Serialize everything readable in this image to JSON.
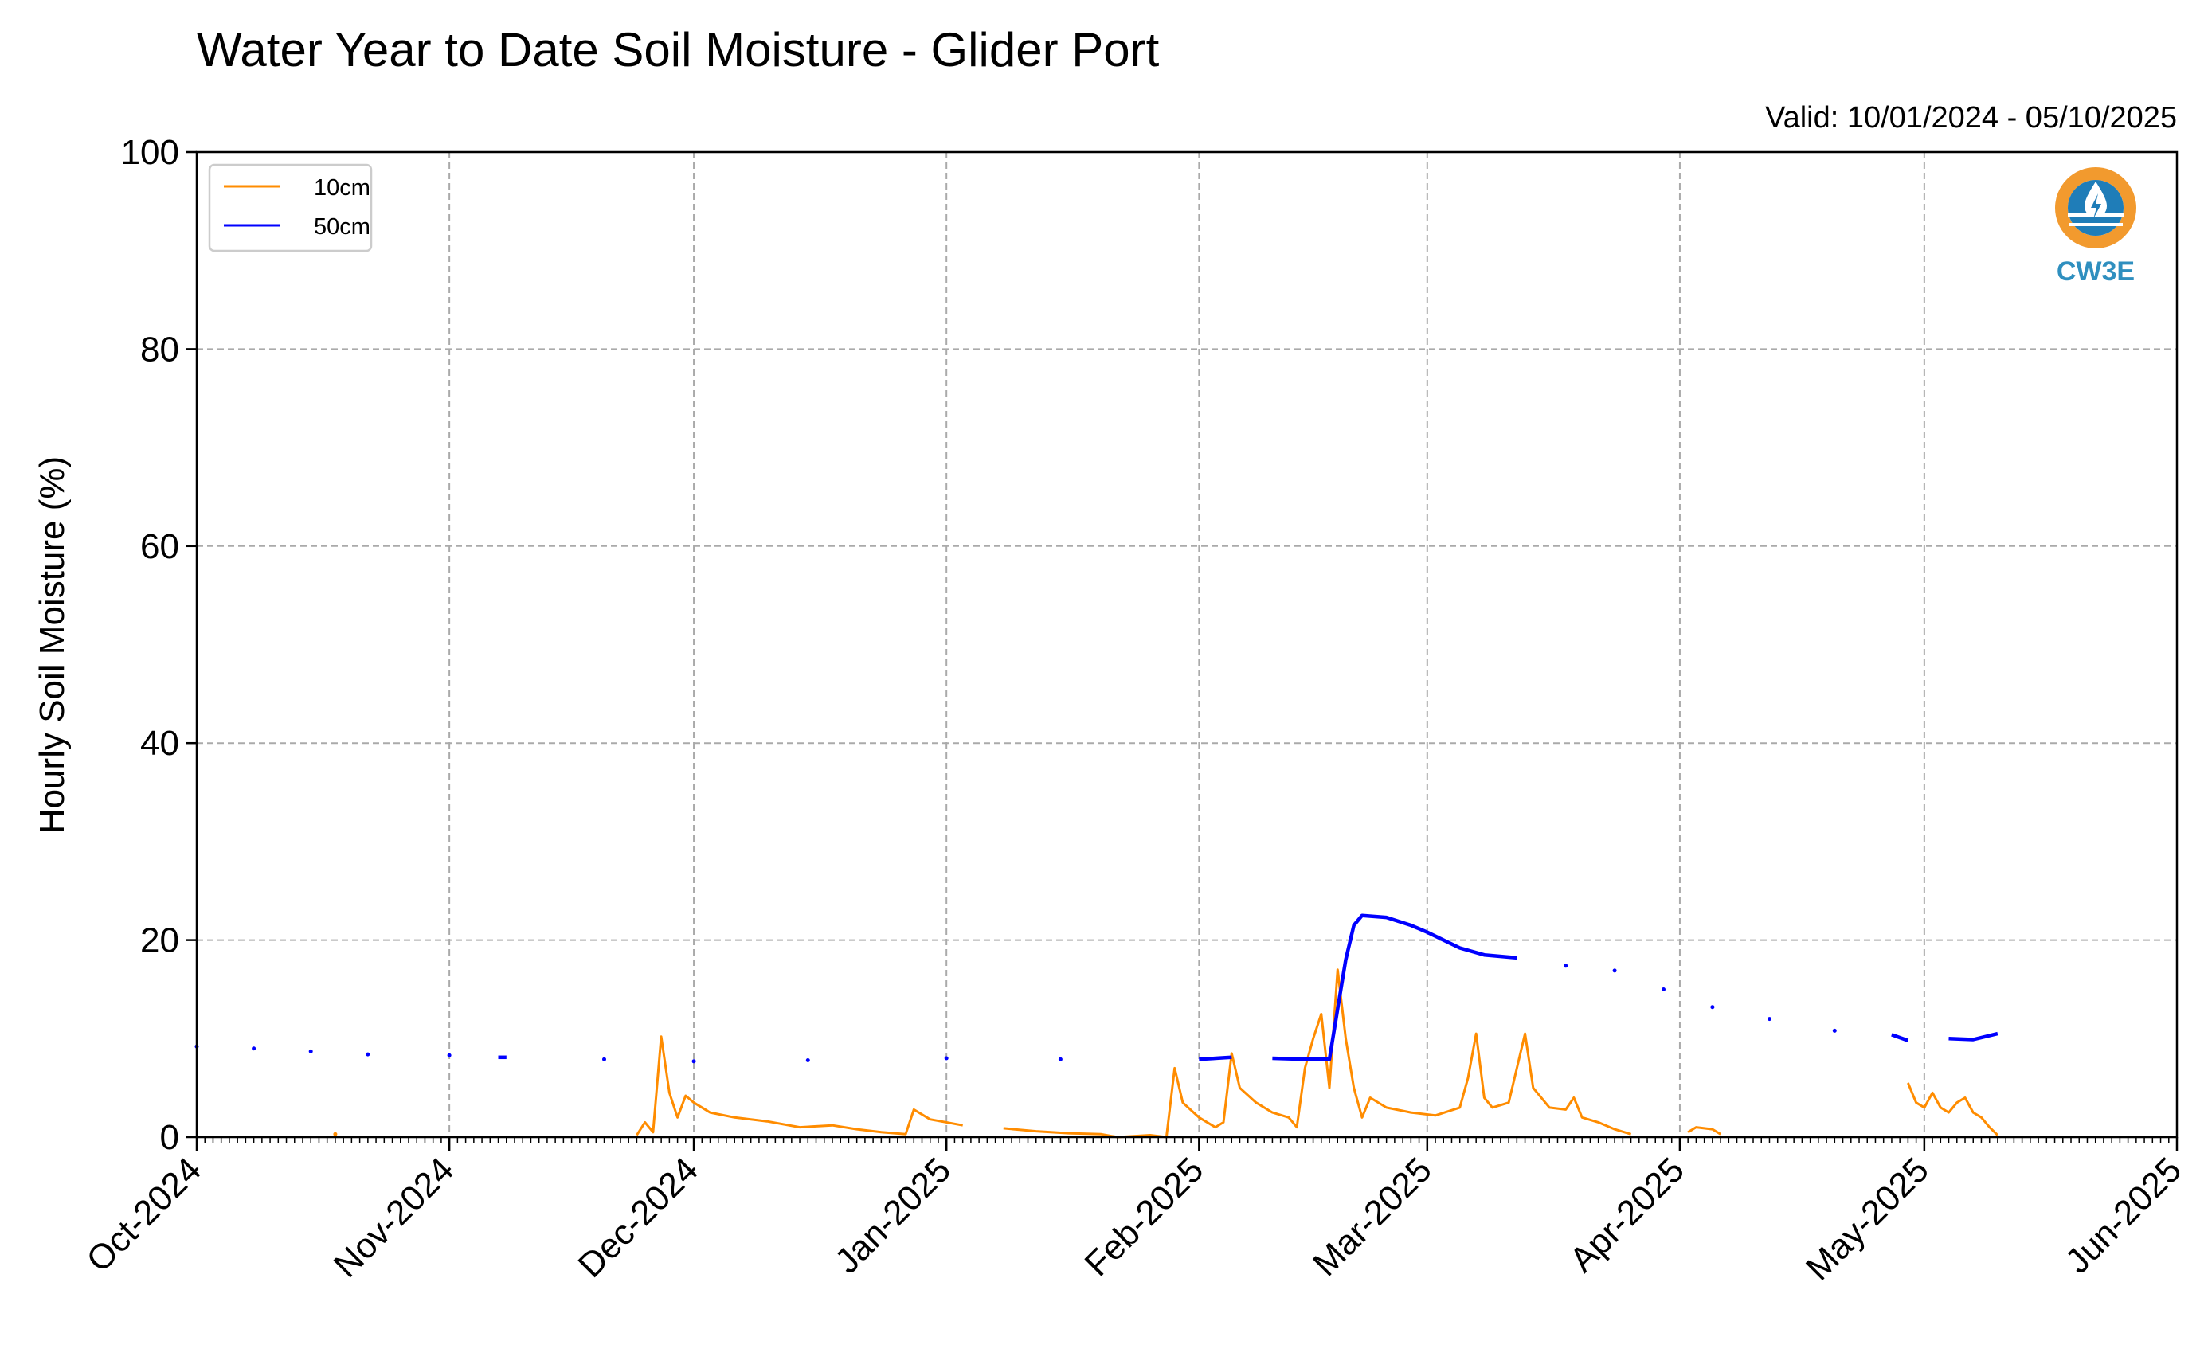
{
  "chart_data": {
    "type": "line",
    "title": "Water Year to Date Soil Moisture - Glider Port",
    "subtitle": "Valid: 10/01/2024 - 05/10/2025",
    "xlabel": "",
    "ylabel": "Hourly Soil Moisture (%)",
    "ylim": [
      0,
      100
    ],
    "xlim": [
      "2024-10-01",
      "2025-06-01"
    ],
    "x_ticks": [
      {
        "date": "2024-10-01",
        "label": "Oct-2024"
      },
      {
        "date": "2024-11-01",
        "label": "Nov-2024"
      },
      {
        "date": "2024-12-01",
        "label": "Dec-2024"
      },
      {
        "date": "2025-01-01",
        "label": "Jan-2025"
      },
      {
        "date": "2025-02-01",
        "label": "Feb-2025"
      },
      {
        "date": "2025-03-01",
        "label": "Mar-2025"
      },
      {
        "date": "2025-04-01",
        "label": "Apr-2025"
      },
      {
        "date": "2025-05-01",
        "label": "May-2025"
      },
      {
        "date": "2025-06-01",
        "label": "Jun-2025"
      }
    ],
    "y_ticks": [
      0,
      20,
      40,
      60,
      80,
      100
    ],
    "grid": true,
    "legend_position": "top-left",
    "series": [
      {
        "name": "10cm",
        "color": "#ff8c00",
        "points": [
          [
            "2024-10-18",
            0.3
          ],
          [
            "2024-11-24",
            0.2
          ],
          [
            "2024-11-25",
            1.5
          ],
          [
            "2024-11-26",
            0.5
          ],
          [
            "2024-11-27",
            10.2
          ],
          [
            "2024-11-28",
            4.5
          ],
          [
            "2024-11-29",
            2.0
          ],
          [
            "2024-11-30",
            4.2
          ],
          [
            "2024-12-01",
            3.5
          ],
          [
            "2024-12-03",
            2.5
          ],
          [
            "2024-12-06",
            2.0
          ],
          [
            "2024-12-10",
            1.6
          ],
          [
            "2024-12-14",
            1.0
          ],
          [
            "2024-12-18",
            1.2
          ],
          [
            "2024-12-21",
            0.8
          ],
          [
            "2024-12-24",
            0.5
          ],
          [
            "2024-12-27",
            0.3
          ],
          [
            "2024-12-28",
            2.8
          ],
          [
            "2024-12-30",
            1.8
          ],
          [
            "2025-01-03",
            1.2
          ],
          [
            "2025-01-08",
            0.9
          ],
          [
            "2025-01-12",
            0.6
          ],
          [
            "2025-01-16",
            0.4
          ],
          [
            "2025-01-20",
            0.3
          ],
          [
            "2025-01-22",
            0.0
          ],
          [
            "2025-01-26",
            0.2
          ],
          [
            "2025-01-28",
            0.0
          ],
          [
            "2025-01-29",
            7.0
          ],
          [
            "2025-01-30",
            3.5
          ],
          [
            "2025-02-01",
            2.0
          ],
          [
            "2025-02-03",
            1.0
          ],
          [
            "2025-02-04",
            1.5
          ],
          [
            "2025-02-05",
            8.5
          ],
          [
            "2025-02-06",
            5.0
          ],
          [
            "2025-02-08",
            3.5
          ],
          [
            "2025-02-10",
            2.5
          ],
          [
            "2025-02-12",
            2.0
          ],
          [
            "2025-02-13",
            1.0
          ],
          [
            "2025-02-14",
            7.0
          ],
          [
            "2025-02-15",
            10.0
          ],
          [
            "2025-02-16",
            12.5
          ],
          [
            "2025-02-17",
            5.0
          ],
          [
            "2025-02-18",
            17.0
          ],
          [
            "2025-02-19",
            10.0
          ],
          [
            "2025-02-20",
            5.0
          ],
          [
            "2025-02-21",
            2.0
          ],
          [
            "2025-02-22",
            4.0
          ],
          [
            "2025-02-24",
            3.0
          ],
          [
            "2025-02-27",
            2.5
          ],
          [
            "2025-03-02",
            2.2
          ],
          [
            "2025-03-05",
            3.0
          ],
          [
            "2025-03-06",
            6.0
          ],
          [
            "2025-03-07",
            10.5
          ],
          [
            "2025-03-08",
            4.0
          ],
          [
            "2025-03-09",
            3.0
          ],
          [
            "2025-03-11",
            3.5
          ],
          [
            "2025-03-13",
            10.5
          ],
          [
            "2025-03-14",
            5.0
          ],
          [
            "2025-03-16",
            3.0
          ],
          [
            "2025-03-18",
            2.8
          ],
          [
            "2025-03-19",
            4.0
          ],
          [
            "2025-03-20",
            2.0
          ],
          [
            "2025-03-22",
            1.5
          ],
          [
            "2025-03-24",
            0.8
          ],
          [
            "2025-03-26",
            0.3
          ],
          [
            "2025-04-02",
            0.5
          ],
          [
            "2025-04-03",
            1.0
          ],
          [
            "2025-04-05",
            0.8
          ],
          [
            "2025-04-06",
            0.3
          ],
          [
            "2025-04-29",
            5.5
          ],
          [
            "2025-04-30",
            3.5
          ],
          [
            "2025-05-01",
            3.0
          ],
          [
            "2025-05-02",
            4.5
          ],
          [
            "2025-05-03",
            3.0
          ],
          [
            "2025-05-04",
            2.5
          ],
          [
            "2025-05-05",
            3.5
          ],
          [
            "2025-05-06",
            4.0
          ],
          [
            "2025-05-07",
            2.5
          ],
          [
            "2025-05-08",
            2.0
          ],
          [
            "2025-05-09",
            1.0
          ],
          [
            "2025-05-10",
            0.2
          ]
        ]
      },
      {
        "name": "50cm",
        "color": "#0000ff",
        "points": [
          [
            "2024-10-01",
            9.2
          ],
          [
            "2024-10-08",
            9.0
          ],
          [
            "2024-10-15",
            8.7
          ],
          [
            "2024-10-22",
            8.4
          ],
          [
            "2024-11-01",
            8.3
          ],
          [
            "2024-11-07",
            8.1
          ],
          [
            "2024-11-08",
            8.1
          ],
          [
            "2024-11-20",
            7.9
          ],
          [
            "2024-12-01",
            7.7
          ],
          [
            "2024-12-15",
            7.8
          ],
          [
            "2025-01-01",
            8.0
          ],
          [
            "2025-01-15",
            7.9
          ],
          [
            "2025-02-01",
            7.9
          ],
          [
            "2025-02-05",
            8.1
          ],
          [
            "2025-02-10",
            8.0
          ],
          [
            "2025-02-14",
            7.9
          ],
          [
            "2025-02-17",
            7.9
          ],
          [
            "2025-02-18",
            13.0
          ],
          [
            "2025-02-19",
            18.0
          ],
          [
            "2025-02-20",
            21.5
          ],
          [
            "2025-02-21",
            22.5
          ],
          [
            "2025-02-24",
            22.3
          ],
          [
            "2025-02-27",
            21.5
          ],
          [
            "2025-03-01",
            20.8
          ],
          [
            "2025-03-05",
            19.2
          ],
          [
            "2025-03-08",
            18.5
          ],
          [
            "2025-03-12",
            18.2
          ],
          [
            "2025-03-18",
            17.4
          ],
          [
            "2025-03-24",
            16.9
          ],
          [
            "2025-03-30",
            15.0
          ],
          [
            "2025-04-05",
            13.2
          ],
          [
            "2025-04-12",
            12.0
          ],
          [
            "2025-04-20",
            10.8
          ],
          [
            "2025-04-27",
            10.4
          ],
          [
            "2025-04-29",
            9.8
          ],
          [
            "2025-05-04",
            10.0
          ],
          [
            "2025-05-07",
            9.9
          ],
          [
            "2025-05-10",
            10.5
          ]
        ]
      }
    ],
    "legend": [
      "10cm",
      "50cm"
    ]
  },
  "logo": {
    "text": "CW3E",
    "colors": {
      "ring": "#f29a2e",
      "water": "#1f7db8",
      "text": "#2f8fbf"
    }
  }
}
